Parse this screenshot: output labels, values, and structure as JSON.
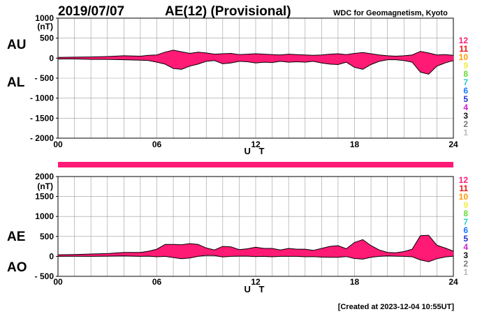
{
  "header": {
    "date": "2019/07/07",
    "title": "AE(12) (Provisional)",
    "org": "WDC for Geomagnetism, Kyoto"
  },
  "footer": {
    "created": "[Created at 2023-12-04 10:55UT]"
  },
  "colors": {
    "fill": "#ff1a75",
    "line": "#000000",
    "grid": "#9a9a9a",
    "bar": "#ff1a75"
  },
  "legend": [
    {
      "label": "12",
      "color": "#ff1a75"
    },
    {
      "label": "11",
      "color": "#ee1111"
    },
    {
      "label": "10",
      "color": "#ff9900"
    },
    {
      "label": "9",
      "color": "#eeee44"
    },
    {
      "label": "8",
      "color": "#66dd33"
    },
    {
      "label": "7",
      "color": "#22cccc"
    },
    {
      "label": "6",
      "color": "#1177ff"
    },
    {
      "label": "5",
      "color": "#2233cc"
    },
    {
      "label": "4",
      "color": "#cc22cc"
    },
    {
      "label": "3",
      "color": "#111111"
    },
    {
      "label": "2",
      "color": "#777777"
    },
    {
      "label": "1",
      "color": "#bbbbbb"
    }
  ],
  "chart_data": [
    {
      "type": "area",
      "panel": "AU/AL",
      "labels_upper": "AU",
      "labels_lower": "AL",
      "ylabel": "(nT)",
      "xlabel": "U T",
      "ylim": [
        -2000,
        1000
      ],
      "yticks": [
        "1000",
        "500",
        "0",
        "- 500",
        "- 1000",
        "- 1500",
        "- 2000"
      ],
      "ytick_values": [
        1000,
        500,
        0,
        -500,
        -1000,
        -1500,
        -2000
      ],
      "xlim": [
        0,
        24
      ],
      "xticks": [
        "00",
        "06",
        "12",
        "18",
        "24"
      ],
      "xtick_values": [
        0,
        6,
        12,
        18,
        24
      ],
      "series": [
        {
          "name": "AU",
          "x": [
            0,
            1,
            2,
            3,
            4,
            5,
            5.5,
            6,
            6.5,
            7,
            7.5,
            8,
            8.5,
            9,
            9.5,
            10,
            10.5,
            11,
            11.5,
            12,
            12.5,
            13,
            13.5,
            14,
            14.5,
            15,
            15.5,
            16,
            16.5,
            17,
            17.5,
            18,
            18.5,
            19,
            19.5,
            20,
            20.5,
            21,
            21.5,
            22,
            22.5,
            23,
            23.5,
            24
          ],
          "values": [
            20,
            25,
            30,
            40,
            60,
            50,
            70,
            80,
            150,
            200,
            160,
            120,
            150,
            130,
            100,
            110,
            120,
            90,
            100,
            110,
            100,
            90,
            80,
            100,
            90,
            80,
            70,
            80,
            100,
            110,
            90,
            120,
            140,
            110,
            80,
            60,
            50,
            60,
            80,
            170,
            130,
            80,
            90,
            70
          ]
        },
        {
          "name": "AL",
          "x": [
            0,
            1,
            2,
            3,
            4,
            5,
            5.5,
            6,
            6.5,
            7,
            7.5,
            8,
            8.5,
            9,
            9.5,
            10,
            10.5,
            11,
            11.5,
            12,
            12.5,
            13,
            13.5,
            14,
            14.5,
            15,
            15.5,
            16,
            16.5,
            17,
            17.5,
            18,
            18.5,
            19,
            19.5,
            20,
            20.5,
            21,
            21.5,
            22,
            22.5,
            23,
            23.5,
            24
          ],
          "values": [
            -20,
            -20,
            -30,
            -30,
            -40,
            -50,
            -60,
            -100,
            -150,
            -260,
            -280,
            -200,
            -150,
            -80,
            -60,
            -140,
            -120,
            -80,
            -90,
            -120,
            -100,
            -110,
            -80,
            -100,
            -90,
            -100,
            -80,
            -120,
            -150,
            -160,
            -100,
            -230,
            -280,
            -160,
            -80,
            -40,
            -40,
            -60,
            -100,
            -350,
            -400,
            -200,
            -120,
            -60
          ]
        }
      ]
    },
    {
      "type": "area",
      "panel": "AE/AO",
      "labels_upper": "AE",
      "labels_lower": "AO",
      "ylabel": "(nT)",
      "xlabel": "U T",
      "ylim": [
        -500,
        2000
      ],
      "yticks": [
        "2000",
        "1500",
        "1000",
        "500",
        "0",
        "- 500"
      ],
      "ytick_values": [
        2000,
        1500,
        1000,
        500,
        0,
        -500
      ],
      "xlim": [
        0,
        24
      ],
      "xticks": [
        "00",
        "06",
        "12",
        "18",
        "24"
      ],
      "xtick_values": [
        0,
        6,
        12,
        18,
        24
      ],
      "series": [
        {
          "name": "AE",
          "x": [
            0,
            1,
            2,
            3,
            4,
            5,
            5.5,
            6,
            6.5,
            7,
            7.5,
            8,
            8.5,
            9,
            9.5,
            10,
            10.5,
            11,
            11.5,
            12,
            12.5,
            13,
            13.5,
            14,
            14.5,
            15,
            15.5,
            16,
            16.5,
            17,
            17.5,
            18,
            18.5,
            19,
            19.5,
            20,
            20.5,
            21,
            21.5,
            22,
            22.5,
            23,
            23.5,
            24
          ],
          "values": [
            40,
            45,
            60,
            70,
            100,
            100,
            130,
            180,
            300,
            300,
            290,
            320,
            300,
            210,
            160,
            250,
            240,
            170,
            190,
            230,
            200,
            200,
            160,
            200,
            180,
            180,
            150,
            200,
            250,
            270,
            190,
            350,
            420,
            270,
            160,
            100,
            90,
            120,
            180,
            520,
            530,
            280,
            210,
            130
          ]
        },
        {
          "name": "AO",
          "x": [
            0,
            1,
            2,
            3,
            4,
            5,
            5.5,
            6,
            6.5,
            7,
            7.5,
            8,
            8.5,
            9,
            9.5,
            10,
            10.5,
            11,
            11.5,
            12,
            12.5,
            13,
            13.5,
            14,
            14.5,
            15,
            15.5,
            16,
            16.5,
            17,
            17.5,
            18,
            18.5,
            19,
            19.5,
            20,
            20.5,
            21,
            21.5,
            22,
            22.5,
            23,
            23.5,
            24
          ],
          "values": [
            0,
            2,
            0,
            5,
            10,
            0,
            5,
            -10,
            0,
            -30,
            -60,
            -40,
            0,
            25,
            20,
            -15,
            0,
            5,
            5,
            -5,
            0,
            -10,
            0,
            0,
            0,
            -10,
            -5,
            -20,
            -25,
            -25,
            -5,
            -55,
            -70,
            -25,
            0,
            10,
            5,
            0,
            -10,
            -90,
            -135,
            -60,
            -15,
            5
          ]
        }
      ]
    }
  ]
}
